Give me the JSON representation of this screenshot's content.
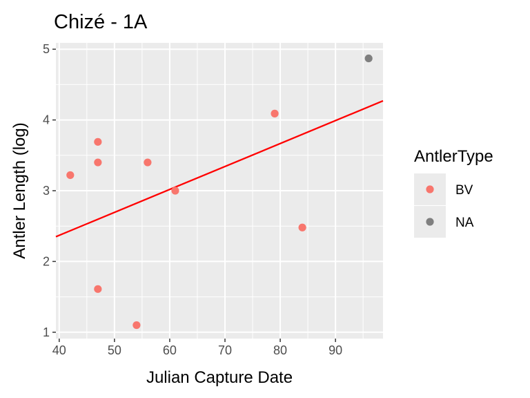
{
  "chart_data": {
    "type": "scatter",
    "title": "Chizé - 1A",
    "xlabel": "Julian Capture Date",
    "ylabel": "Antler Length (log)",
    "xlim": [
      39.4,
      98.6
    ],
    "ylim": [
      0.91,
      5.09
    ],
    "x_ticks": [
      40,
      50,
      60,
      70,
      80,
      90
    ],
    "y_ticks": [
      1,
      2,
      3,
      4,
      5
    ],
    "grid": true,
    "legend": {
      "title": "AntlerType",
      "position": "right",
      "entries": [
        {
          "label": "BV",
          "color": "#F8766D"
        },
        {
          "label": "NA",
          "color": "#7F7F7F"
        }
      ]
    },
    "series": [
      {
        "name": "BV",
        "color": "#F8766D",
        "points": [
          {
            "x": 42,
            "y": 3.22
          },
          {
            "x": 47,
            "y": 3.69
          },
          {
            "x": 47,
            "y": 3.4
          },
          {
            "x": 47,
            "y": 1.61
          },
          {
            "x": 54,
            "y": 1.1
          },
          {
            "x": 56,
            "y": 3.4
          },
          {
            "x": 61,
            "y": 3.0
          },
          {
            "x": 79,
            "y": 4.09
          },
          {
            "x": 84,
            "y": 2.48
          }
        ]
      },
      {
        "name": "NA",
        "color": "#7F7F7F",
        "points": [
          {
            "x": 96,
            "y": 4.87
          }
        ]
      }
    ],
    "trend_line": {
      "color": "#FF0000",
      "from": {
        "x": 39.4,
        "y": 2.35
      },
      "to": {
        "x": 98.6,
        "y": 4.27
      }
    }
  }
}
